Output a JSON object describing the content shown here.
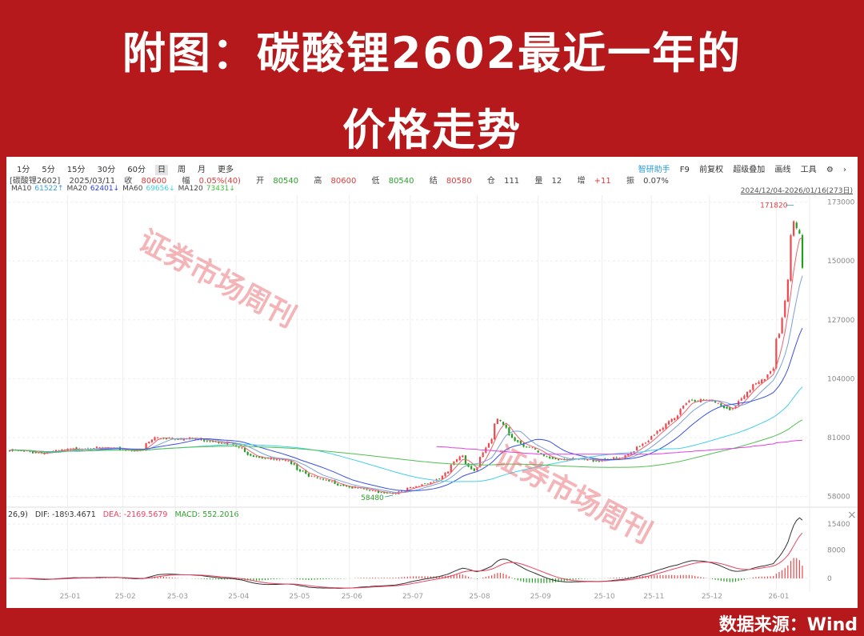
{
  "title": {
    "line1": "附图：碳酸锂2602最近一年的",
    "line2": "价格走势"
  },
  "footer": {
    "source": "数据来源：Wind"
  },
  "toolbar": {
    "periods": [
      "1分",
      "5分",
      "15分",
      "30分",
      "60分",
      "日",
      "周",
      "月",
      "更多"
    ],
    "active": "日",
    "right": [
      "智研助手",
      "F9",
      "前复权",
      "超级叠加",
      "画线",
      "工具"
    ],
    "settings_icon": "gear-icon",
    "more_icon": "chevron-right-icon"
  },
  "info": {
    "name": "[碳酸锂2602]",
    "date": "2025/03/11",
    "close_label": "收",
    "close": "80600",
    "change_label": "幅",
    "change": "0.05%(40)",
    "open_label": "开",
    "open": "80540",
    "high_label": "高",
    "high": "80600",
    "low_label": "低",
    "low": "80540",
    "settle_label": "结",
    "settle": "80580",
    "oi_label": "仓",
    "oi": "111",
    "vol_label": "量",
    "vol": "12",
    "oi_chg_label": "增",
    "oi_chg": "+11",
    "amp_label": "振",
    "amp": "0.07%"
  },
  "ma_legend": [
    {
      "label": "MA10",
      "value": "61522↑",
      "color": "#3b9ddd"
    },
    {
      "label": "MA20",
      "value": "62401↓",
      "color": "#2a3fe0"
    },
    {
      "label": "MA60",
      "value": "69656↓",
      "color": "#3ccfe0"
    },
    {
      "label": "MA120",
      "value": "73431↓",
      "color": "#3cbf3c"
    }
  ],
  "date_range": "2024/12/04-2026/01/16(273日)",
  "macd_header": {
    "prefix": "26,9)",
    "dif": "DIF: -1893.4671",
    "dea": "DEA: -2169.5679",
    "macd": "MACD: 552.2016"
  },
  "watermark": "证券市场周刊",
  "colors": {
    "frame": "#b5191b",
    "up": "#f0474a",
    "down": "#1fa01f",
    "dif": "#333333",
    "dea": "#f04060",
    "ma5": "#f06070",
    "ma10": "#7aa0d8",
    "ma20": "#3a50e8",
    "ma60": "#40d0e8",
    "ma120": "#50c050",
    "overlay": "#e040e0"
  },
  "chart_data": {
    "type": "candlestick",
    "title": "",
    "date_range": [
      "2024-12-04",
      "2026-01-16"
    ],
    "price_axis": {
      "ticks": [
        58000,
        81000,
        104000,
        127000,
        150000,
        173000
      ],
      "range": [
        58000,
        173000
      ]
    },
    "x_ticks": [
      "25-01",
      "25-02",
      "25-03",
      "25-04",
      "25-05",
      "25-06",
      "25-07",
      "25-08",
      "25-09",
      "25-10",
      "25-11",
      "25-12",
      "26-01"
    ],
    "annotations": {
      "high": {
        "value": 171820,
        "label": "171820",
        "date": "2026-01-13"
      },
      "low": {
        "value": 58480,
        "label": "58480",
        "date": "2025-06-23"
      }
    },
    "approximate_close": [
      [
        "2024-12-04",
        76000
      ],
      [
        "2024-12-20",
        75000
      ],
      [
        "2025-01-10",
        77000
      ],
      [
        "2025-01-24",
        76500
      ],
      [
        "2025-02-14",
        76000
      ],
      [
        "2025-02-20",
        81000
      ],
      [
        "2025-03-11",
        80600
      ],
      [
        "2025-03-28",
        79000
      ],
      [
        "2025-04-10",
        74000
      ],
      [
        "2025-04-30",
        71000
      ],
      [
        "2025-05-15",
        65000
      ],
      [
        "2025-05-30",
        62000
      ],
      [
        "2025-06-13",
        60000
      ],
      [
        "2025-06-23",
        59200
      ],
      [
        "2025-06-30",
        61000
      ],
      [
        "2025-07-15",
        65000
      ],
      [
        "2025-07-25",
        74000
      ],
      [
        "2025-07-31",
        68000
      ],
      [
        "2025-08-08",
        80000
      ],
      [
        "2025-08-12",
        88000
      ],
      [
        "2025-08-20",
        80000
      ],
      [
        "2025-09-05",
        73000
      ],
      [
        "2025-09-30",
        72000
      ],
      [
        "2025-10-20",
        73000
      ],
      [
        "2025-10-31",
        80000
      ],
      [
        "2025-11-14",
        89000
      ],
      [
        "2025-11-20",
        96000
      ],
      [
        "2025-12-02",
        95000
      ],
      [
        "2025-12-10",
        92000
      ],
      [
        "2025-12-31",
        108000
      ],
      [
        "2026-01-06",
        122000
      ],
      [
        "2026-01-09",
        142000
      ],
      [
        "2026-01-13",
        165000
      ],
      [
        "2026-01-15",
        160000
      ],
      [
        "2026-01-16",
        147000
      ]
    ],
    "overlay_line": [
      [
        "2025-07-14",
        77500
      ],
      [
        "2025-09-01",
        74500
      ],
      [
        "2025-11-03",
        74500
      ],
      [
        "2025-12-15",
        77000
      ],
      [
        "2026-01-16",
        80000
      ]
    ],
    "macd_axis": {
      "ticks": [
        0,
        8000,
        15400
      ]
    },
    "moving_averages": [
      "MA5",
      "MA10",
      "MA20",
      "MA60",
      "MA120"
    ]
  }
}
